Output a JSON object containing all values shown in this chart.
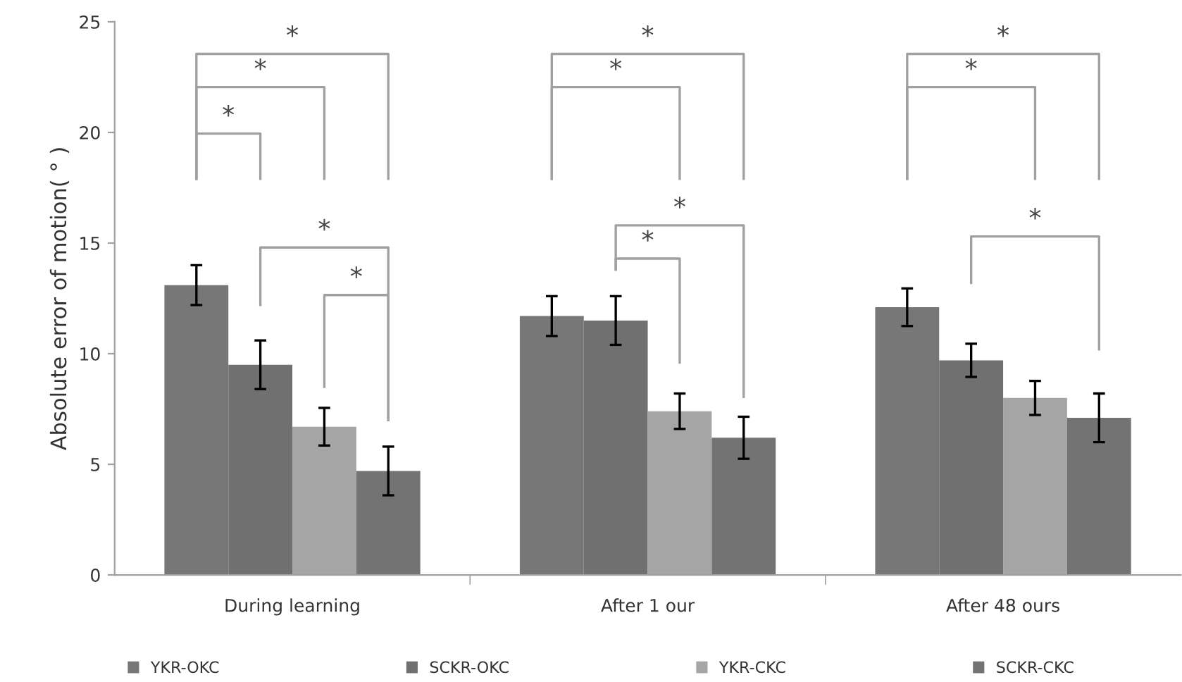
{
  "chart_data": {
    "type": "bar",
    "ylabel": "Absolute error of motion( ° )",
    "categories": [
      "During learning",
      "After 1 our",
      "After 48 ours"
    ],
    "series": [
      {
        "name": "YKR-OKC",
        "color": "#777777",
        "values": [
          13.1,
          11.7,
          12.1
        ],
        "errors": [
          0.9,
          0.9,
          0.85
        ]
      },
      {
        "name": "SCKR-OKC",
        "color": "#707070",
        "values": [
          9.5,
          11.5,
          9.7
        ],
        "errors": [
          1.1,
          1.1,
          0.75
        ]
      },
      {
        "name": "YKR-CKC",
        "color": "#a5a5a5",
        "values": [
          6.7,
          7.4,
          8.0
        ],
        "errors": [
          0.85,
          0.8,
          0.77
        ]
      },
      {
        "name": "SCKR-CKC",
        "color": "#737373",
        "values": [
          4.7,
          6.2,
          7.1
        ],
        "errors": [
          1.1,
          0.95,
          1.1
        ]
      }
    ],
    "ylim": [
      0,
      25
    ],
    "yticks": [
      0,
      5,
      10,
      15,
      20,
      25
    ],
    "grid": false,
    "legend": "bottom",
    "annotations": [
      "*",
      "*",
      "*",
      "*",
      "*",
      "*",
      "*",
      "*",
      "*",
      "*",
      "*",
      "*"
    ]
  }
}
